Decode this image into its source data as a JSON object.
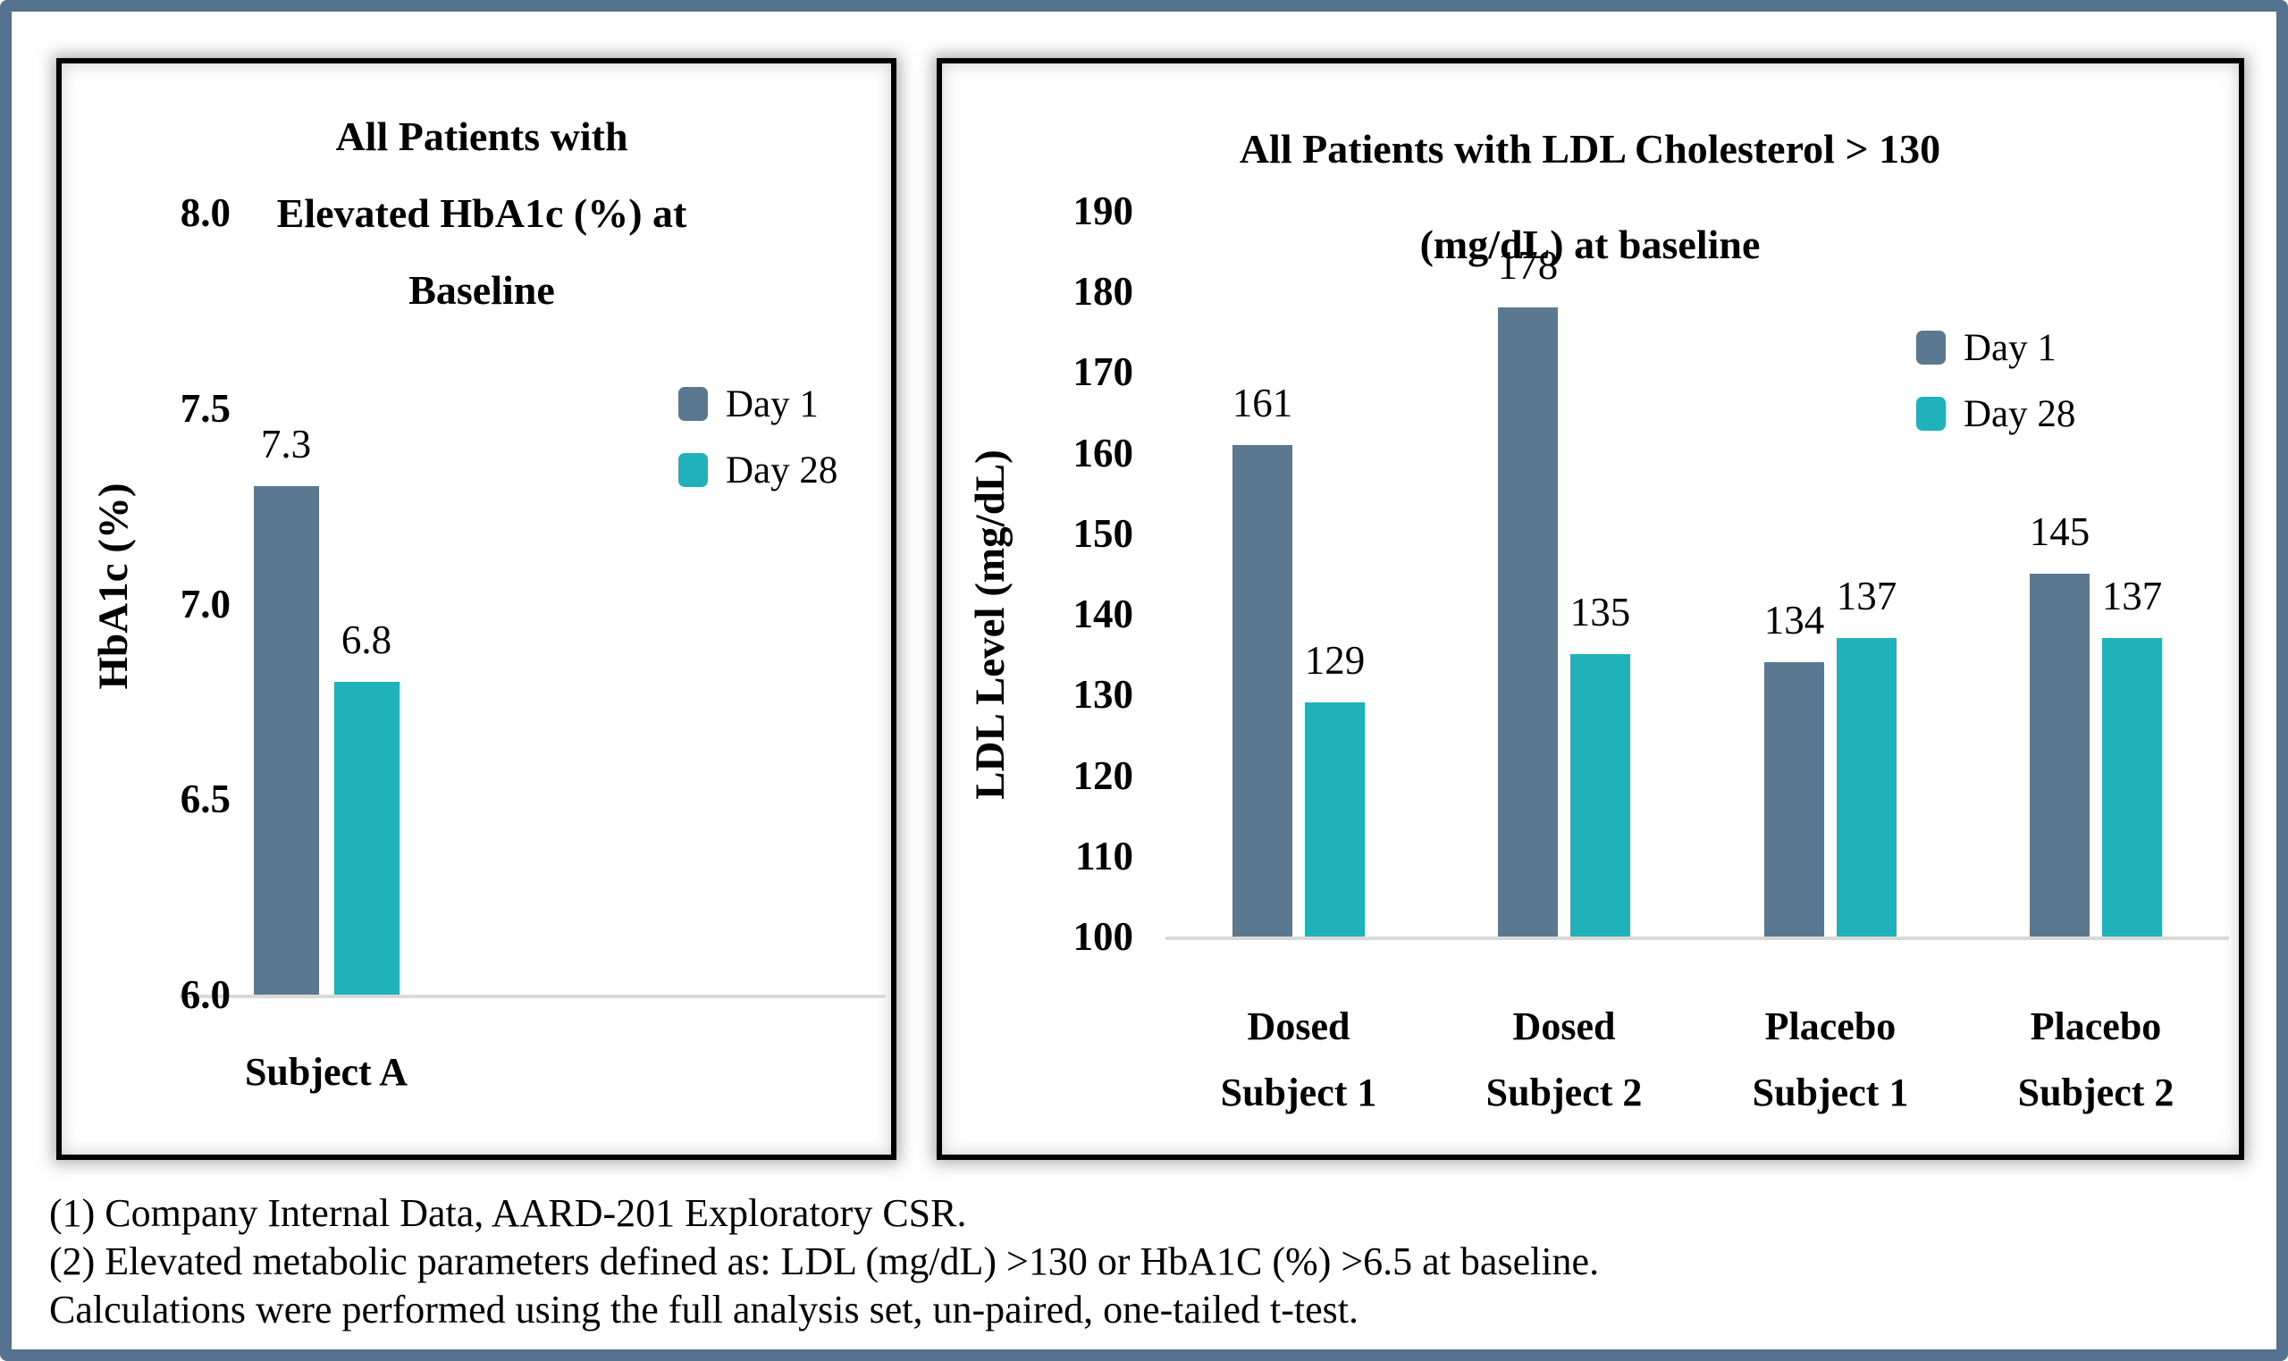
{
  "page": {
    "background": "#ffffff",
    "frame_border_color": "#54718e",
    "panel_border_color": "#000000",
    "axis_line_color": "#d9d9d9",
    "text_color": "#000000",
    "day1_color": "#5a7890",
    "day28_color": "#20b2ba"
  },
  "chart_data": [
    {
      "type": "bar",
      "title": "All Patients with Elevated HbA1c (%) at Baseline",
      "title_lines": [
        "All Patients with",
        "Elevated HbA1c (%) at",
        "Baseline"
      ],
      "ylabel": "HbA1c (%)",
      "ylim": [
        6.0,
        8.0
      ],
      "ytick_step": 0.5,
      "yticks": [
        "8.0",
        "7.5",
        "7.0",
        "6.5",
        "6.0"
      ],
      "grid": false,
      "legend_position": "right",
      "categories": [
        "Subject A"
      ],
      "category_lines": [
        [
          "Subject A"
        ]
      ],
      "series": [
        {
          "name": "Day 1",
          "color": "#5a7890",
          "values": [
            7.3
          ]
        },
        {
          "name": "Day 28",
          "color": "#20b2ba",
          "values": [
            6.8
          ]
        }
      ]
    },
    {
      "type": "bar",
      "title": "All Patients with LDL Cholesterol > 130 (mg/dL) at baseline",
      "title_lines": [
        "All Patients with LDL Cholesterol > 130",
        "(mg/dL) at baseline"
      ],
      "ylabel": "LDL Level (mg/dL)",
      "ylim": [
        100,
        190
      ],
      "ytick_step": 10,
      "yticks": [
        "190",
        "180",
        "170",
        "160",
        "150",
        "140",
        "130",
        "120",
        "110",
        "100"
      ],
      "grid": false,
      "legend_position": "right",
      "categories": [
        "Dosed Subject 1",
        "Dosed Subject 2",
        "Placebo Subject 1",
        "Placebo Subject 2"
      ],
      "category_lines": [
        [
          "Dosed",
          "Subject 1"
        ],
        [
          "Dosed",
          "Subject 2"
        ],
        [
          "Placebo",
          "Subject 1"
        ],
        [
          "Placebo",
          "Subject 2"
        ]
      ],
      "series": [
        {
          "name": "Day 1",
          "color": "#5a7890",
          "values": [
            161,
            178,
            134,
            145
          ]
        },
        {
          "name": "Day 28",
          "color": "#20b2ba",
          "values": [
            129,
            135,
            137,
            137
          ]
        }
      ]
    }
  ],
  "footnotes": [
    "(1) Company Internal Data, AARD-201 Exploratory CSR.",
    "(2) Elevated metabolic parameters defined as: LDL (mg/dL) >130 or HbA1C (%) >6.5 at baseline.",
    "Calculations were performed using the full analysis set, un-paired, one-tailed t-test."
  ]
}
